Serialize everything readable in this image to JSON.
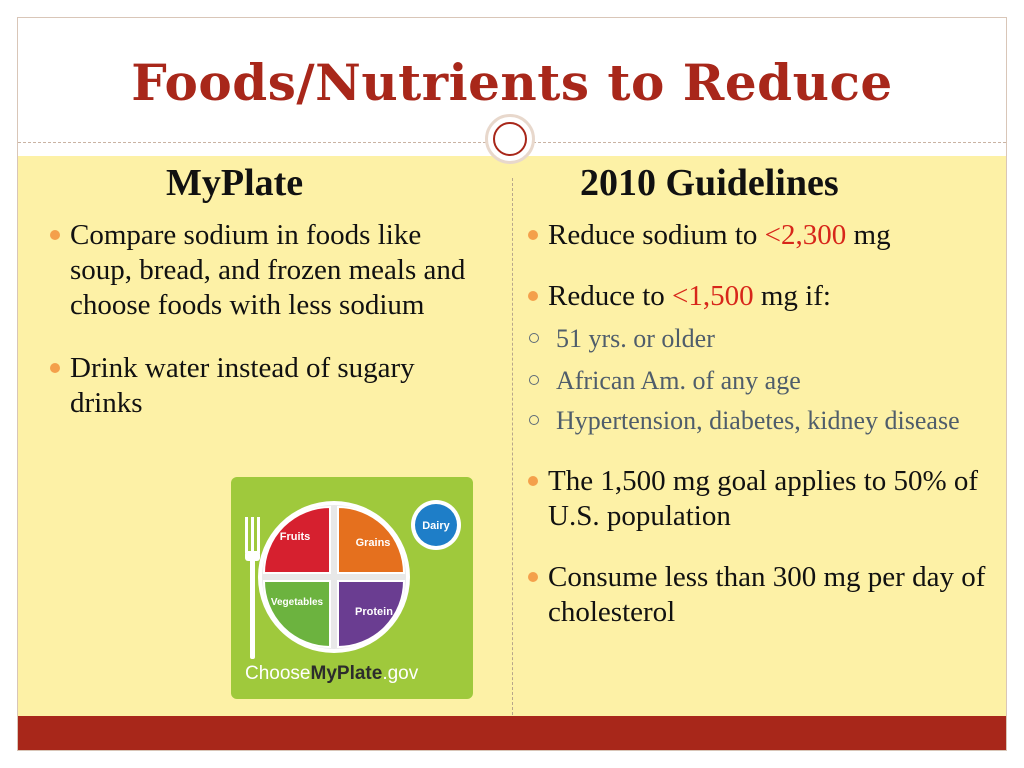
{
  "slide": {
    "title": "Foods/Nutrients to Reduce",
    "colors": {
      "title": "#a8271a",
      "content_bg": "#fdf1a6",
      "bullet": "#f4a04b",
      "highlight": "#d7261a",
      "footer": "#a8271a"
    }
  },
  "left": {
    "heading": "MyPlate",
    "bullets": [
      {
        "text": "Compare sodium in foods like soup, bread, and frozen meals and choose foods with less sodium"
      },
      {
        "text": "Drink water instead of sugary drinks"
      }
    ],
    "logo": {
      "icon": "myplate-logo",
      "fruits": "Fruits",
      "grains": "Grains",
      "vegetables": "Vegetables",
      "protein": "Protein",
      "dairy": "Dairy",
      "choose": "Choose",
      "myplate": "MyPlate",
      "gov": ".gov"
    }
  },
  "right": {
    "heading": "2010 Guidelines",
    "b1": {
      "pre": "Reduce sodium to ",
      "value": "<2,300",
      "post": " mg"
    },
    "b2": {
      "pre": "Reduce to ",
      "value": "<1,500",
      "post": " mg if:"
    },
    "subs": [
      {
        "text": " 51 yrs. or older"
      },
      {
        "text": "African Am. of any age"
      },
      {
        "text": "Hypertension, diabetes, kidney disease"
      }
    ],
    "b3": {
      "text": "The 1,500 mg goal applies to 50% of  U.S. population"
    },
    "b4": {
      "text": "Consume less than 300 mg per day of cholesterol"
    }
  }
}
